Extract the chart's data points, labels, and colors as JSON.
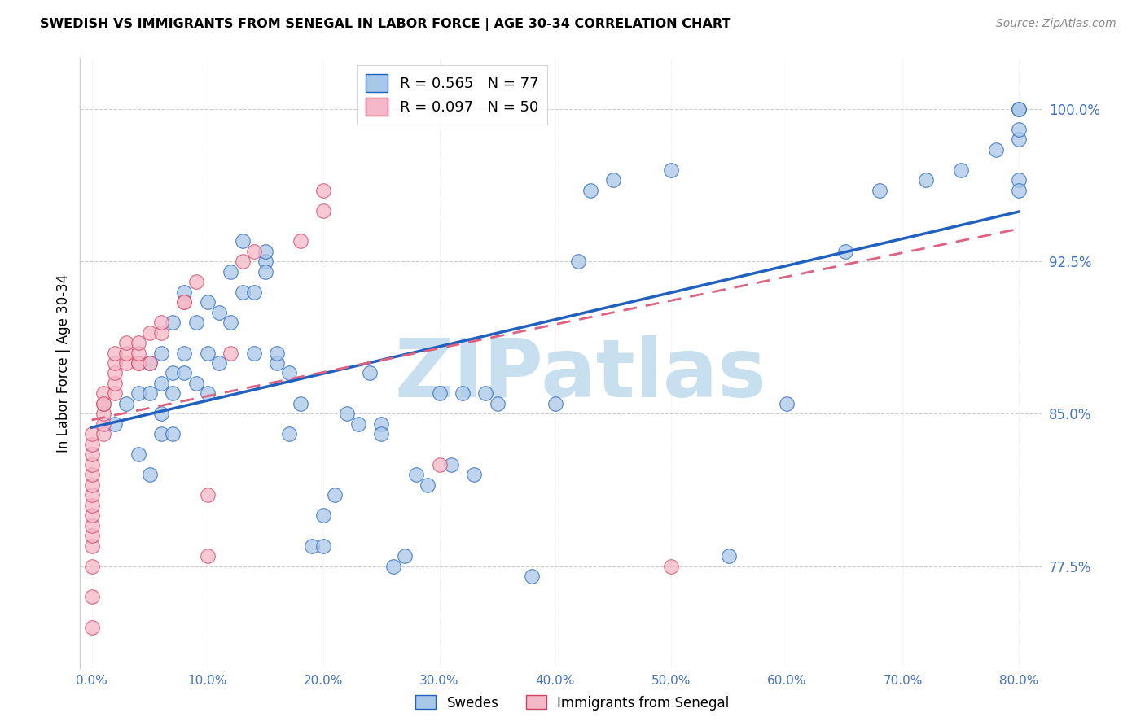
{
  "title": "SWEDISH VS IMMIGRANTS FROM SENEGAL IN LABOR FORCE | AGE 30-34 CORRELATION CHART",
  "source": "Source: ZipAtlas.com",
  "ylabel": "In Labor Force | Age 30-34",
  "xlim": [
    -1.0,
    82.0
  ],
  "ylim": [
    0.725,
    1.025
  ],
  "yticks": [
    0.775,
    0.85,
    0.925,
    1.0
  ],
  "ytick_labels": [
    "77.5%",
    "85.0%",
    "92.5%",
    "100.0%"
  ],
  "xticks": [
    0,
    10,
    20,
    30,
    40,
    50,
    60,
    70,
    80
  ],
  "xtick_labels": [
    "0.0%",
    "10.0%",
    "20.0%",
    "30.0%",
    "40.0%",
    "50.0%",
    "60.0%",
    "70.0%",
    "80.0%"
  ],
  "r_swedes": 0.565,
  "n_swedes": 77,
  "r_senegal": 0.097,
  "n_senegal": 50,
  "blue_color": "#a8c8e8",
  "pink_color": "#f4b8c8",
  "blue_line_color": "#2060c0",
  "pink_line_color": "#e06080",
  "watermark": "ZIPatlas",
  "watermark_color": "#c8dff0",
  "legend_label_swedes": "Swedes",
  "legend_label_senegal": "Immigrants from Senegal",
  "swedes_x": [
    2,
    3,
    4,
    4,
    5,
    5,
    5,
    6,
    6,
    6,
    6,
    7,
    7,
    7,
    7,
    8,
    8,
    8,
    9,
    9,
    10,
    10,
    10,
    11,
    11,
    12,
    12,
    13,
    13,
    14,
    14,
    15,
    15,
    15,
    16,
    16,
    17,
    17,
    18,
    19,
    20,
    20,
    21,
    22,
    23,
    24,
    25,
    25,
    26,
    27,
    28,
    29,
    30,
    31,
    32,
    33,
    34,
    35,
    38,
    40,
    42,
    43,
    45,
    50,
    55,
    60,
    65,
    68,
    72,
    75,
    78,
    80,
    80,
    80,
    80,
    80,
    80
  ],
  "swedes_y": [
    0.845,
    0.855,
    0.86,
    0.83,
    0.875,
    0.86,
    0.82,
    0.88,
    0.865,
    0.85,
    0.84,
    0.895,
    0.87,
    0.86,
    0.84,
    0.91,
    0.88,
    0.87,
    0.895,
    0.865,
    0.905,
    0.88,
    0.86,
    0.875,
    0.9,
    0.92,
    0.895,
    0.935,
    0.91,
    0.91,
    0.88,
    0.925,
    0.92,
    0.93,
    0.875,
    0.88,
    0.87,
    0.84,
    0.855,
    0.785,
    0.8,
    0.785,
    0.81,
    0.85,
    0.845,
    0.87,
    0.845,
    0.84,
    0.775,
    0.78,
    0.82,
    0.815,
    0.86,
    0.825,
    0.86,
    0.82,
    0.86,
    0.855,
    0.77,
    0.855,
    0.925,
    0.96,
    0.965,
    0.97,
    0.78,
    0.855,
    0.93,
    0.96,
    0.965,
    0.97,
    0.98,
    0.985,
    0.99,
    1.0,
    1.0,
    0.965,
    0.96
  ],
  "senegal_x": [
    0,
    0,
    0,
    0,
    0,
    0,
    0,
    0,
    0,
    0,
    0,
    0,
    0,
    0,
    0,
    1,
    1,
    1,
    1,
    1,
    1,
    2,
    2,
    2,
    2,
    2,
    3,
    3,
    3,
    4,
    4,
    4,
    4,
    5,
    5,
    6,
    6,
    8,
    8,
    9,
    10,
    10,
    12,
    13,
    14,
    18,
    20,
    20,
    30,
    50
  ],
  "senegal_y": [
    0.745,
    0.76,
    0.775,
    0.785,
    0.79,
    0.795,
    0.8,
    0.805,
    0.81,
    0.815,
    0.82,
    0.825,
    0.83,
    0.835,
    0.84,
    0.84,
    0.845,
    0.85,
    0.855,
    0.86,
    0.855,
    0.86,
    0.865,
    0.87,
    0.875,
    0.88,
    0.875,
    0.88,
    0.885,
    0.875,
    0.875,
    0.88,
    0.885,
    0.89,
    0.875,
    0.89,
    0.895,
    0.905,
    0.905,
    0.915,
    0.78,
    0.81,
    0.88,
    0.925,
    0.93,
    0.935,
    0.95,
    0.96,
    0.825,
    0.775
  ]
}
